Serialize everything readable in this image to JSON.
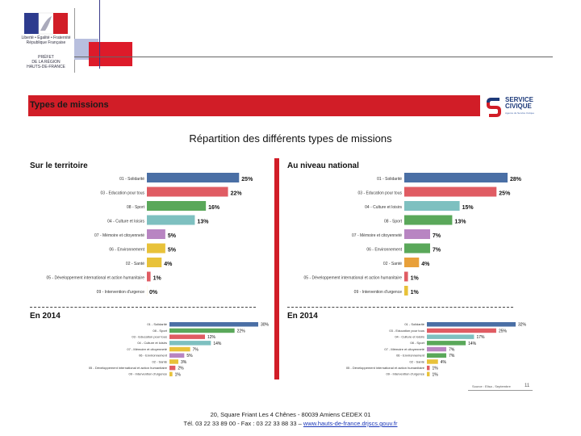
{
  "logo": {
    "line1": "Liberté • Égalité • Fraternité",
    "line2": "République Française",
    "line3": "PRÉFET",
    "line4": "DE LA RÉGION",
    "line5": "HAUTS-DE-FRANCE"
  },
  "header": {
    "band_title": "Types de missions"
  },
  "service_civique": {
    "line1": "SERVICE",
    "line2": "CIVIQUE",
    "tagline": "Agence du Service Civique"
  },
  "main_title": "Répartition des différents types de missions",
  "colors": {
    "band": "#d11d27",
    "title_text": "#111111"
  },
  "chart_data": [
    {
      "type": "bar",
      "orientation": "horizontal",
      "title": "Sur le territoire",
      "categories": [
        "01 - Solidarité",
        "03 - Education pour tous",
        "08 - Sport",
        "04 - Culture et loisirs",
        "07 - Mémoire et citoyenneté",
        "06 - Environnement",
        "02 - Santé",
        "05 - Développement international et action humanitaire",
        "09 - Intervention d'urgence"
      ],
      "values": [
        25,
        22,
        16,
        13,
        5,
        5,
        4,
        1,
        0
      ],
      "labels": [
        "25%",
        "22%",
        "16%",
        "13%",
        "5%",
        "5%",
        "4%",
        "1%",
        "0%"
      ],
      "colors": [
        "#4a6fa5",
        "#e05c63",
        "#5aa85a",
        "#7ec0c0",
        "#b885c2",
        "#e8c23a",
        "#e8c23a",
        "#e05c63",
        "#e8c23a"
      ],
      "xlim": [
        0,
        28
      ]
    },
    {
      "type": "bar",
      "orientation": "horizontal",
      "title": "Au niveau national",
      "categories": [
        "01 - Solidarité",
        "03 - Education pour tous",
        "04 - Culture et loisirs",
        "08 - Sport",
        "07 - Mémoire et citoyenneté",
        "06 - Environnement",
        "02 - Santé",
        "05 - Développement international et action humanitaire",
        "09 - Intervention d'urgence"
      ],
      "values": [
        28,
        25,
        15,
        13,
        7,
        7,
        4,
        1,
        1
      ],
      "labels": [
        "28%",
        "25%",
        "15%",
        "13%",
        "7%",
        "7%",
        "4%",
        "1%",
        "1%"
      ],
      "colors": [
        "#4a6fa5",
        "#e05c63",
        "#7ec0c0",
        "#5aa85a",
        "#b885c2",
        "#5aa85a",
        "#e8a03a",
        "#e05c63",
        "#e8c23a"
      ],
      "xlim": [
        0,
        28
      ]
    },
    {
      "type": "bar",
      "orientation": "horizontal",
      "title": "En 2014",
      "categories": [
        "01 - Solidarité",
        "08 - Sport",
        "03 - Education pour tous",
        "04 - Culture et loisirs",
        "07 - Mémoire et citoyenneté",
        "06 - Environnement",
        "02 - Santé",
        "05 - Développement international et action humanitaire",
        "09 - Intervention d'urgence"
      ],
      "values": [
        30,
        22,
        12,
        14,
        7,
        5,
        3,
        2,
        1
      ],
      "labels": [
        "30%",
        "22%",
        "12%",
        "14%",
        "7%",
        "5%",
        "3%",
        "2%",
        "1%"
      ],
      "colors": [
        "#4a6fa5",
        "#5aa85a",
        "#e05c63",
        "#7ec0c0",
        "#e8c23a",
        "#b885c2",
        "#e8c23a",
        "#e05c63",
        "#e8c23a"
      ],
      "xlim": [
        0,
        30
      ]
    },
    {
      "type": "bar",
      "orientation": "horizontal",
      "title": "En 2014",
      "categories": [
        "01 - Solidarité",
        "03 - Education pour tous",
        "04 - Culture et loisirs",
        "08 - Sport",
        "07 - Mémoire et citoyenneté",
        "06 - Environnement",
        "02 - Santé",
        "05 - Développement international et action humanitaire",
        "09 - Intervention d'urgence"
      ],
      "values": [
        32,
        25,
        17,
        14,
        7,
        7,
        4,
        1,
        1
      ],
      "labels": [
        "32%",
        "25%",
        "17%",
        "14%",
        "7%",
        "7%",
        "4%",
        "1%",
        "1%"
      ],
      "colors": [
        "#4a6fa5",
        "#e05c63",
        "#7ec0c0",
        "#5aa85a",
        "#b885c2",
        "#5aa85a",
        "#e8c23a",
        "#e05c63",
        "#e8c23a"
      ],
      "xlim": [
        0,
        32
      ]
    }
  ],
  "footer": {
    "source": "Source : Elisa - Septembre",
    "page": "11",
    "address": "20, Square Friant Les 4 Chênes - 80039 Amiens CEDEX 01",
    "phone": "Tél. 03 22 33 89 00 - Fax : 03 22 33 88 33 – ",
    "link": "www.hauts-de-france.drjscs.gouv.fr"
  }
}
